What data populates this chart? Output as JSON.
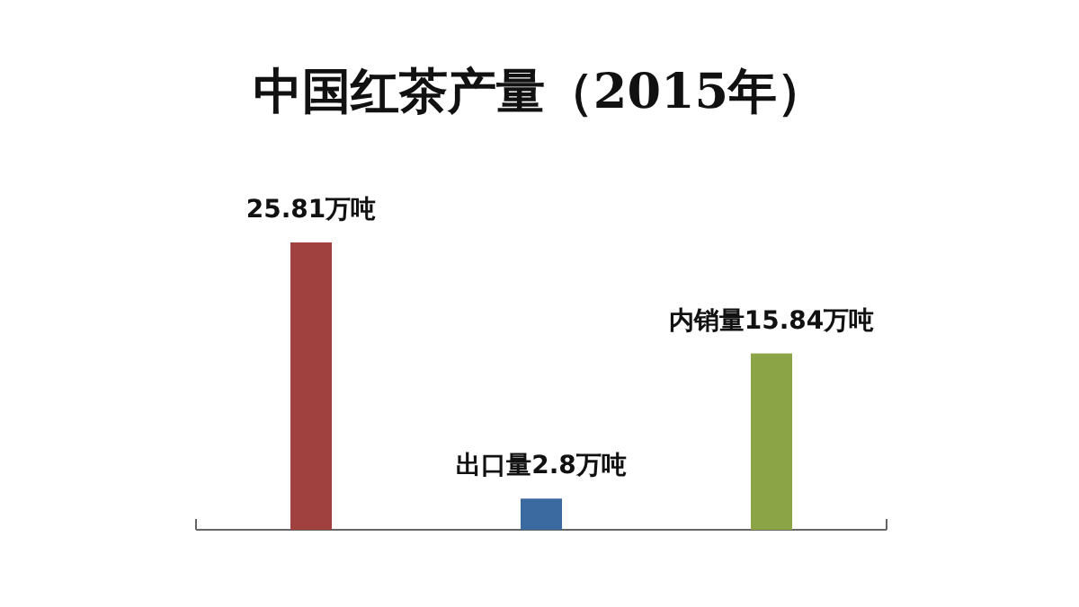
{
  "chart_data": {
    "type": "bar",
    "title": "中国红茶产量（2015年）",
    "categories": [
      null,
      null,
      null
    ],
    "values": [
      25.81,
      2.8,
      15.84
    ],
    "colors": [
      "#a0413f",
      "#3b6aa0",
      "#8ba446"
    ],
    "value_labels": [
      "25.81万吨",
      "出口量2.8万吨",
      "内销量15.84万吨"
    ]
  }
}
